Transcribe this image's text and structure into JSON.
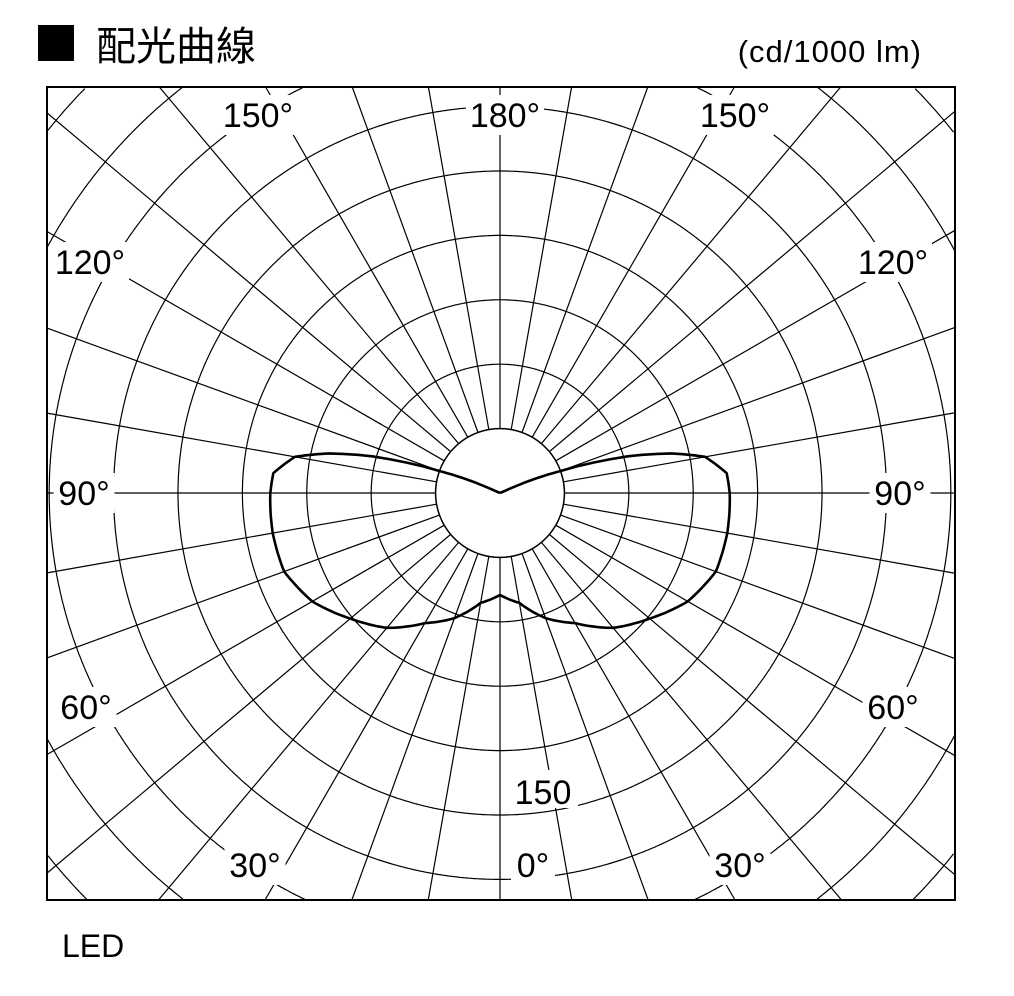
{
  "title": "配光曲線",
  "title_icon": "black-square-icon",
  "unit": "(cd/1000 lm)",
  "footer": "LED",
  "chart_data": {
    "type": "polar",
    "title": "配光曲線",
    "unit": "(cd/1000 lm)",
    "angle_labels": {
      "top_left": "150°",
      "top": "180°",
      "top_right": "150°",
      "upper_left": "120°",
      "upper_right": "120°",
      "left": "90°",
      "right": "90°",
      "lower_left": "60°",
      "lower_right": "60°",
      "bottom_left": "30°",
      "bottom": "0°",
      "bottom_right": "30°"
    },
    "radial_label": "150",
    "radial_label_value": 150,
    "ring_step_cd": 30,
    "angle_step_deg": 10,
    "grid": true,
    "symmetric": true,
    "series": [
      {
        "angles_deg": [
          0,
          10,
          20,
          30,
          40,
          50,
          60,
          70,
          80,
          90,
          95,
          100,
          103,
          106,
          110,
          115,
          180
        ],
        "values_cd": [
          47.5,
          52,
          62,
          70,
          82,
          91,
          101,
          107,
          107.5,
          107,
          106,
          97,
          82,
          62,
          30,
          0,
          0
        ]
      }
    ],
    "line_color": "#000000"
  }
}
